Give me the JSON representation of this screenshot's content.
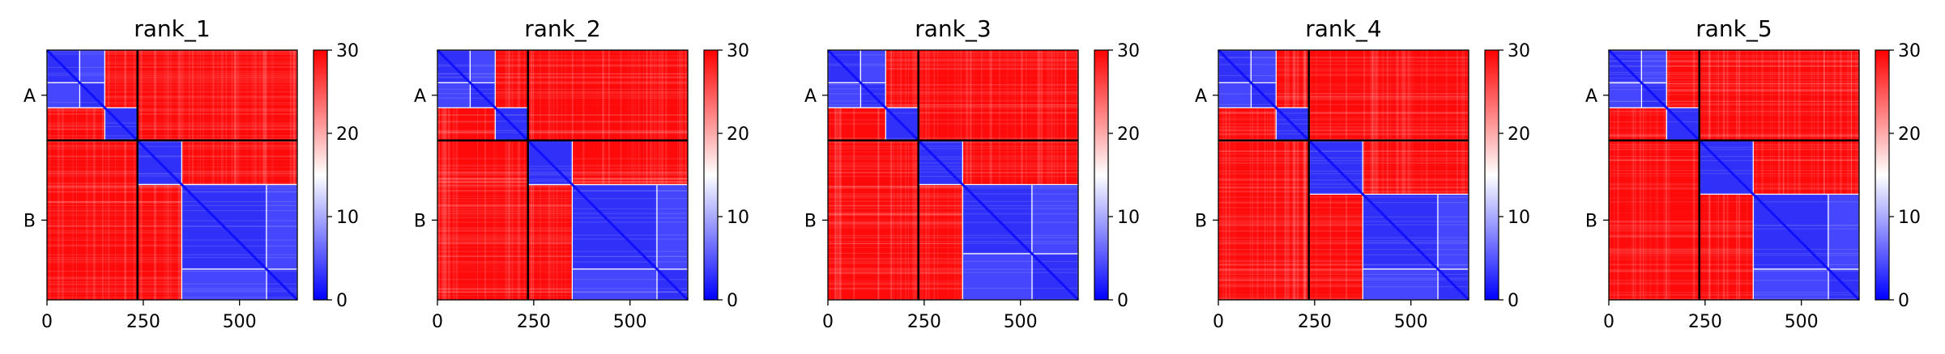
{
  "chart_data": [
    {
      "type": "heatmap",
      "title": "rank_1",
      "colorbar": {
        "min": 0,
        "max": 30,
        "ticks": [
          0,
          10,
          20,
          30
        ],
        "colormap": "bwr"
      },
      "x_ticks": [
        0,
        250,
        500
      ],
      "y_ticks": [
        "A",
        "B"
      ],
      "chain_boundary": 235,
      "length": 650,
      "blocks": [
        [
          0,
          85
        ],
        [
          85,
          150
        ],
        [
          150,
          235
        ],
        [
          235,
          350
        ],
        [
          350,
          570
        ],
        [
          570,
          650
        ]
      ],
      "off_blocks": [
        [
          [
            350,
            570
          ],
          [
            570,
            650
          ]
        ],
        [
          [
            0,
            85
          ],
          [
            85,
            150
          ]
        ]
      ]
    },
    {
      "type": "heatmap",
      "title": "rank_2",
      "colorbar": {
        "min": 0,
        "max": 30,
        "ticks": [
          0,
          10,
          20,
          30
        ],
        "colormap": "bwr"
      },
      "x_ticks": [
        0,
        250,
        500
      ],
      "y_ticks": [
        "A",
        "B"
      ],
      "chain_boundary": 235,
      "length": 650,
      "blocks": [
        [
          0,
          85
        ],
        [
          85,
          150
        ],
        [
          150,
          235
        ],
        [
          235,
          350
        ],
        [
          350,
          570
        ],
        [
          570,
          650
        ]
      ],
      "off_blocks": [
        [
          [
            350,
            570
          ],
          [
            570,
            650
          ]
        ],
        [
          [
            0,
            85
          ],
          [
            85,
            150
          ]
        ]
      ]
    },
    {
      "type": "heatmap",
      "title": "rank_3",
      "colorbar": {
        "min": 0,
        "max": 30,
        "ticks": [
          0,
          10,
          20,
          30
        ],
        "colormap": "bwr"
      },
      "x_ticks": [
        0,
        250,
        500
      ],
      "y_ticks": [
        "A",
        "B"
      ],
      "chain_boundary": 235,
      "length": 650,
      "blocks": [
        [
          0,
          85
        ],
        [
          85,
          150
        ],
        [
          150,
          235
        ],
        [
          235,
          350
        ],
        [
          350,
          530
        ],
        [
          530,
          650
        ]
      ],
      "off_blocks": [
        [
          [
            350,
            530
          ],
          [
            530,
            650
          ]
        ],
        [
          [
            0,
            85
          ],
          [
            85,
            150
          ]
        ]
      ]
    },
    {
      "type": "heatmap",
      "title": "rank_4",
      "colorbar": {
        "min": 0,
        "max": 30,
        "ticks": [
          0,
          10,
          20,
          30
        ],
        "colormap": "bwr"
      },
      "x_ticks": [
        0,
        250,
        500
      ],
      "y_ticks": [
        "A",
        "B"
      ],
      "chain_boundary": 235,
      "length": 650,
      "blocks": [
        [
          0,
          85
        ],
        [
          85,
          150
        ],
        [
          150,
          235
        ],
        [
          235,
          375
        ],
        [
          375,
          570
        ],
        [
          570,
          650
        ]
      ],
      "off_blocks": [
        [
          [
            375,
            570
          ],
          [
            570,
            650
          ]
        ],
        [
          [
            0,
            85
          ],
          [
            85,
            150
          ]
        ]
      ]
    },
    {
      "type": "heatmap",
      "title": "rank_5",
      "colorbar": {
        "min": 0,
        "max": 30,
        "ticks": [
          0,
          10,
          20,
          30
        ],
        "colormap": "bwr"
      },
      "x_ticks": [
        0,
        250,
        500
      ],
      "y_ticks": [
        "A",
        "B"
      ],
      "chain_boundary": 235,
      "length": 650,
      "blocks": [
        [
          0,
          85
        ],
        [
          85,
          150
        ],
        [
          150,
          235
        ],
        [
          235,
          375
        ],
        [
          375,
          570
        ],
        [
          570,
          650
        ]
      ],
      "off_blocks": [
        [
          [
            375,
            570
          ],
          [
            570,
            650
          ]
        ],
        [
          [
            0,
            85
          ],
          [
            85,
            150
          ]
        ]
      ]
    }
  ]
}
